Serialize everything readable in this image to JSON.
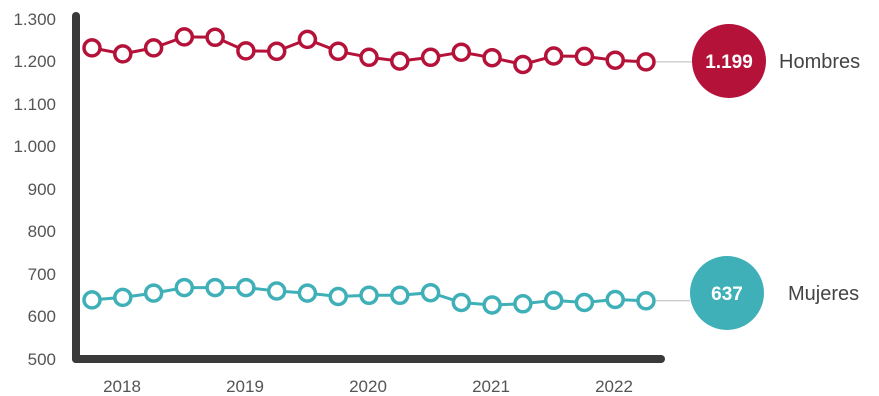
{
  "chart_data": {
    "type": "line",
    "title": "",
    "xlabel": "",
    "ylabel": "",
    "ylim": [
      500,
      1300
    ],
    "y_ticks": [
      "1.300",
      "1.200",
      "1.100",
      "1.000",
      "900",
      "800",
      "700",
      "600",
      "500"
    ],
    "x_tick_labels": [
      "2018",
      "2019",
      "2020",
      "2021",
      "2022"
    ],
    "grid": false,
    "series": [
      {
        "name": "Hombres",
        "color": "#b5123a",
        "end_label": "1.199",
        "values": [
          1232,
          1218,
          1232,
          1258,
          1257,
          1225,
          1224,
          1252,
          1224,
          1210,
          1201,
          1210,
          1222,
          1209,
          1193,
          1213,
          1212,
          1203,
          1199
        ]
      },
      {
        "name": "Mujeres",
        "color": "#3fb0b8",
        "end_label": "637",
        "values": [
          639,
          645,
          655,
          668,
          668,
          668,
          660,
          655,
          647,
          650,
          650,
          656,
          633,
          627,
          630,
          638,
          633,
          640,
          637
        ]
      }
    ]
  }
}
